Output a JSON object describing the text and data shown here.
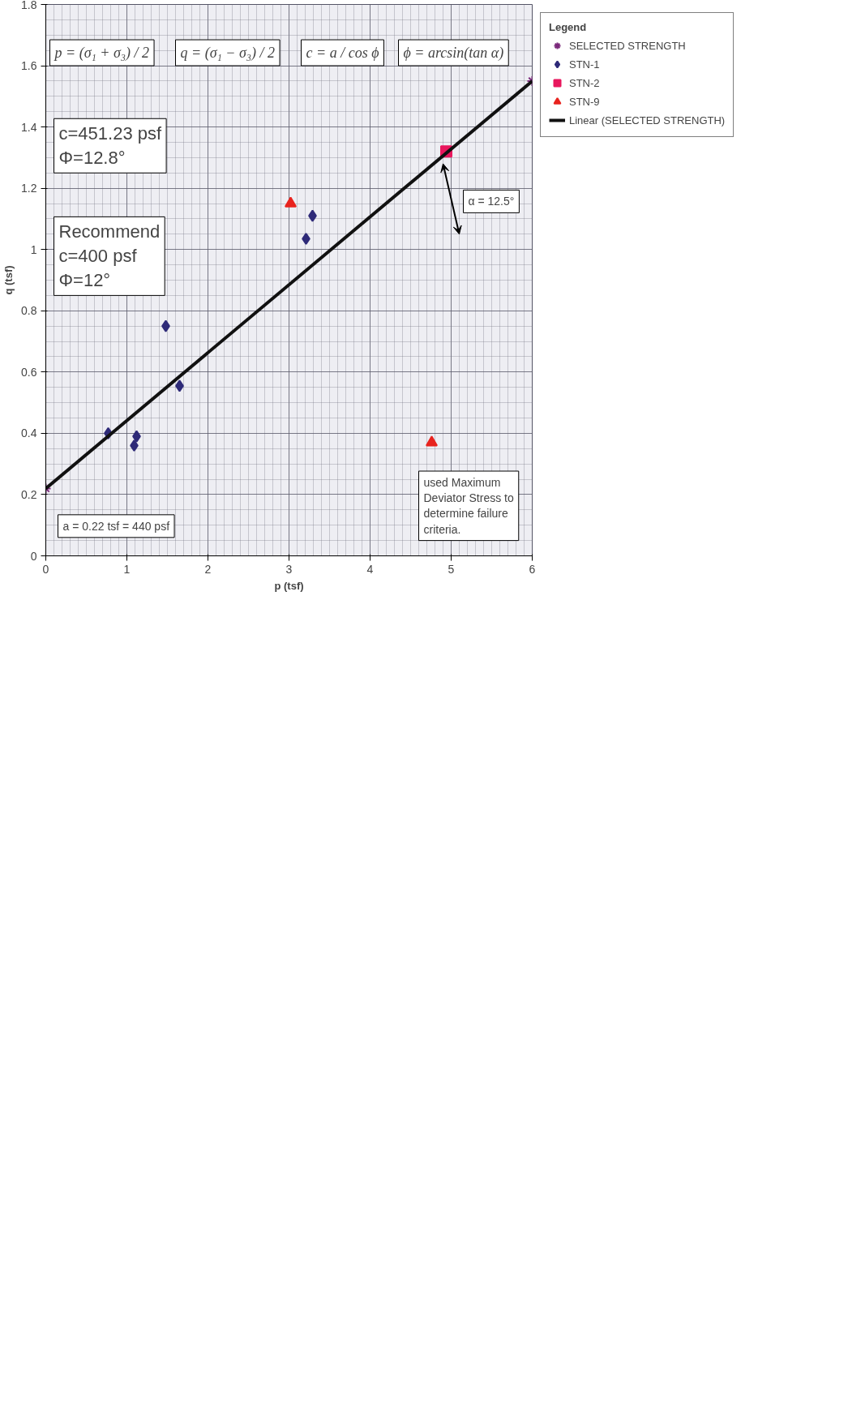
{
  "chart_data": {
    "type": "scatter",
    "xlabel": "p (tsf)",
    "ylabel": "q (tsf)",
    "legend_title": "Legend",
    "xlim": [
      0,
      6
    ],
    "ylim": [
      0,
      1.8
    ],
    "xticks": [
      0,
      1,
      2,
      3,
      4,
      5,
      6
    ],
    "yticks": [
      0,
      0.2,
      0.4,
      0.6,
      0.8,
      1,
      1.2,
      1.4,
      1.6,
      1.8
    ],
    "grid": true,
    "legend": "right",
    "series": [
      {
        "name": "SELECTED STRENGTH",
        "color": "#7b2a7b",
        "marker": "cross",
        "x": [
          0,
          6
        ],
        "values": [
          0.22,
          1.55
        ]
      },
      {
        "name": "STN-1",
        "color": "#2e2a78",
        "marker": "diamond",
        "x": [
          0.77,
          1.12,
          1.09,
          1.48,
          1.65,
          3.21,
          3.29
        ],
        "values": [
          0.4,
          0.39,
          0.36,
          0.75,
          0.555,
          1.035,
          1.11
        ]
      },
      {
        "name": "STN-2",
        "color": "#e8175d",
        "marker": "square",
        "x": [
          4.94
        ],
        "values": [
          1.32
        ]
      },
      {
        "name": "STN-9",
        "color": "#e8231e",
        "marker": "triangle",
        "x": [
          3.02,
          4.76
        ],
        "values": [
          1.15,
          0.37
        ]
      },
      {
        "name": "Linear (SELECTED STRENGTH)",
        "type": "line",
        "color": "#111111",
        "marker": "none",
        "line_style": "solid",
        "x": [
          0,
          6
        ],
        "values": [
          0.22,
          1.55
        ]
      }
    ],
    "annotations": [
      "p = (σ₁ + σ₃) / 2",
      "q = (σ₁ − σ₃) / 2",
      "c = a / cos ϕ",
      "ϕ = arcsin(tan α)",
      "c=451.23 psf\nΦ=12.8°",
      "Recommend\nc=400 psf\nΦ=12°",
      "a = 0.22 tsf = 440 psf",
      "α = 12.5°",
      "used Maximum\nDeviator Stress to\ndetermine failure\ncriteria."
    ]
  }
}
